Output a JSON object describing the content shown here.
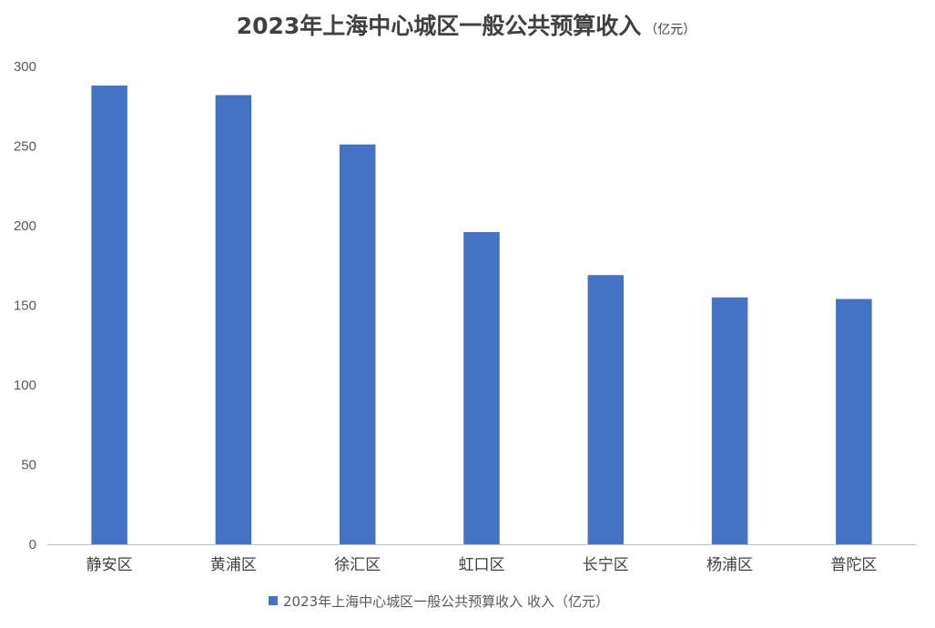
{
  "chart_data": {
    "type": "bar",
    "title": "2023年上海中心城区一般公共预算收入",
    "title_unit": "（亿元）",
    "categories": [
      "静安区",
      "黄浦区",
      "徐汇区",
      "虹口区",
      "长宁区",
      "杨浦区",
      "普陀区"
    ],
    "series": [
      {
        "name": "2023年上海中心城区一般公共预算收入 收入（亿元）",
        "color": "#4472C4",
        "values": [
          288,
          282,
          251,
          196,
          169,
          155,
          154
        ]
      }
    ],
    "xlabel": "",
    "ylabel": "",
    "ylim": [
      0,
      300
    ],
    "yticks": [
      0,
      50,
      100,
      150,
      200,
      250,
      300
    ],
    "grid": false,
    "legend_position": "bottom"
  }
}
